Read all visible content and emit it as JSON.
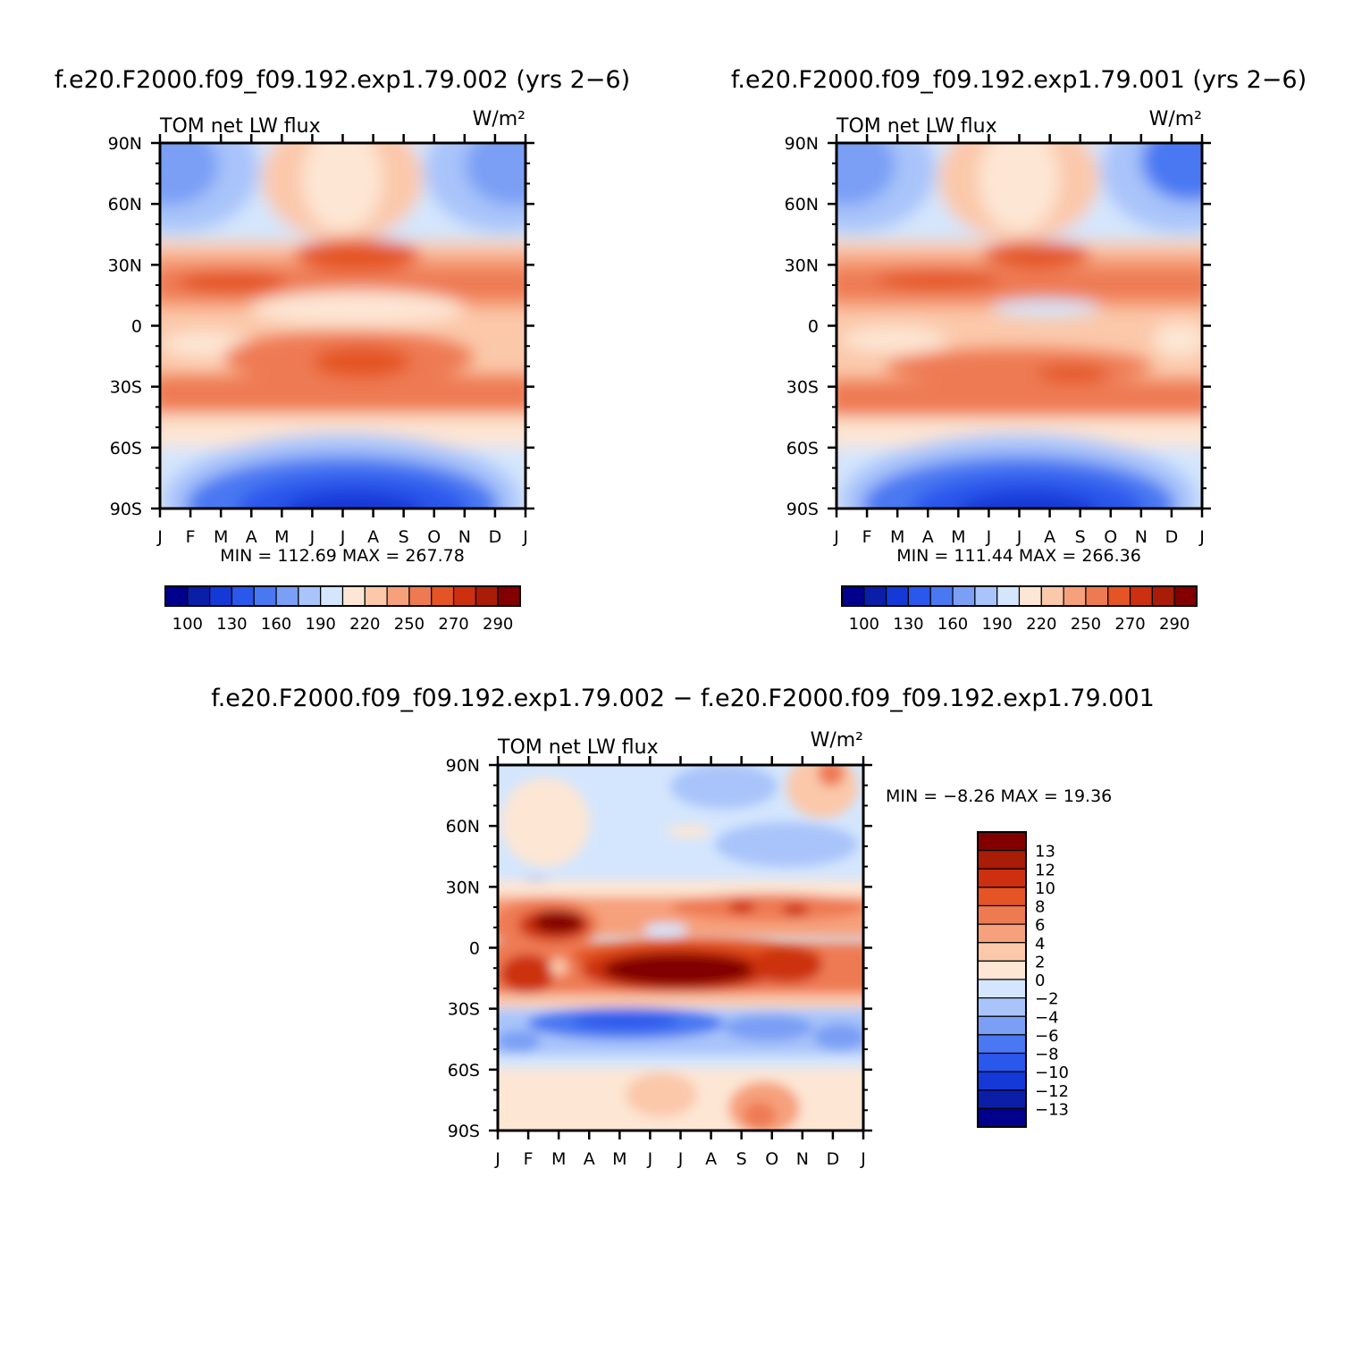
{
  "palette": {
    "diverging": [
      "#00008c",
      "#0a1ea8",
      "#1439d6",
      "#2a57ec",
      "#4a78f2",
      "#7a9ff5",
      "#a9c4fa",
      "#d4e6fd",
      "#fde6d4",
      "#fbc8aa",
      "#f6a07c",
      "#ee7a52",
      "#e45424",
      "#cc3010",
      "#a81c08",
      "#820000"
    ],
    "outline": "#000000"
  },
  "chart_data": [
    {
      "id": "panel-exp002",
      "type": "heatmap",
      "title": "f.e20.F2000.f09_f09.192.exp1.79.002 (yrs 2−6)",
      "field_label": "TOM net LW flux",
      "units": "W/m²",
      "x": [
        "J",
        "F",
        "M",
        "A",
        "M",
        "J",
        "J",
        "A",
        "S",
        "O",
        "N",
        "D",
        "J"
      ],
      "y_ticks": [
        "90N",
        "60N",
        "30N",
        "0",
        "30S",
        "60S",
        "90S"
      ],
      "xlim": [
        0,
        12
      ],
      "ylim": [
        -90,
        90
      ],
      "min_max_label": "MIN = 112.69  MAX = 267.78",
      "min": 112.69,
      "max": 267.78,
      "colorbar": {
        "orientation": "horizontal",
        "levels": [
          100,
          115,
          130,
          145,
          160,
          175,
          190,
          205,
          220,
          235,
          250,
          260,
          270,
          280,
          290
        ],
        "tick_labels": [
          "100",
          "130",
          "160",
          "190",
          "220",
          "250",
          "270",
          "290"
        ]
      }
    },
    {
      "id": "panel-exp001",
      "type": "heatmap",
      "title": "f.e20.F2000.f09_f09.192.exp1.79.001 (yrs 2−6)",
      "field_label": "TOM net LW flux",
      "units": "W/m²",
      "x": [
        "J",
        "F",
        "M",
        "A",
        "M",
        "J",
        "J",
        "A",
        "S",
        "O",
        "N",
        "D",
        "J"
      ],
      "y_ticks": [
        "90N",
        "60N",
        "30N",
        "0",
        "30S",
        "60S",
        "90S"
      ],
      "xlim": [
        0,
        12
      ],
      "ylim": [
        -90,
        90
      ],
      "min_max_label": "MIN = 111.44  MAX = 266.36",
      "min": 111.44,
      "max": 266.36,
      "colorbar": {
        "orientation": "horizontal",
        "levels": [
          100,
          115,
          130,
          145,
          160,
          175,
          190,
          205,
          220,
          235,
          250,
          260,
          270,
          280,
          290
        ],
        "tick_labels": [
          "100",
          "130",
          "160",
          "190",
          "220",
          "250",
          "270",
          "290"
        ]
      }
    },
    {
      "id": "panel-diff",
      "type": "heatmap",
      "title": "f.e20.F2000.f09_f09.192.exp1.79.002 − f.e20.F2000.f09_f09.192.exp1.79.001",
      "field_label": "TOM net LW flux",
      "units": "W/m²",
      "x": [
        "J",
        "F",
        "M",
        "A",
        "M",
        "J",
        "J",
        "A",
        "S",
        "O",
        "N",
        "D",
        "J"
      ],
      "y_ticks": [
        "90N",
        "60N",
        "30N",
        "0",
        "30S",
        "60S",
        "90S"
      ],
      "xlim": [
        0,
        12
      ],
      "ylim": [
        -90,
        90
      ],
      "min_max_label": "MIN =   −8.26  MAX =   19.36",
      "min": -8.26,
      "max": 19.36,
      "colorbar": {
        "orientation": "vertical",
        "levels": [
          -13,
          -12,
          -10,
          -8,
          -6,
          -4,
          -2,
          0,
          2,
          4,
          6,
          8,
          10,
          12,
          13
        ],
        "tick_labels": [
          "13",
          "12",
          "10",
          "8",
          "6",
          "4",
          "2",
          "0",
          "−2",
          "−4",
          "−6",
          "−8",
          "−10",
          "−12",
          "−13"
        ]
      }
    }
  ]
}
